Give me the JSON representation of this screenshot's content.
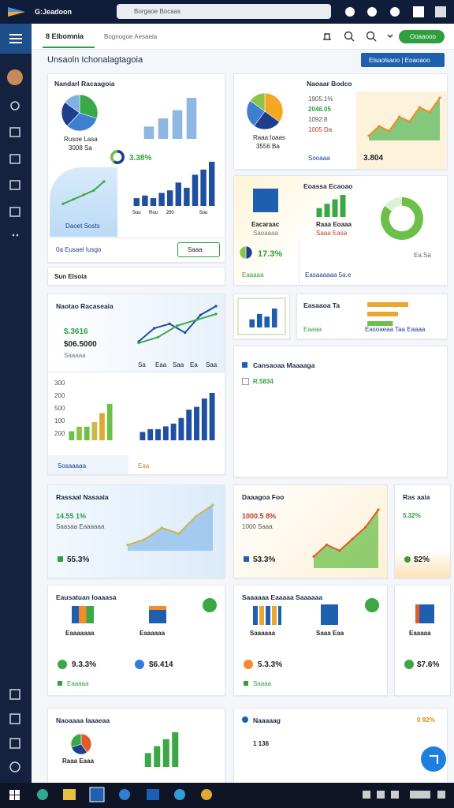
{
  "browser": {
    "title": "G:Jeadoon",
    "address": "Borgaoe Bocaas"
  },
  "header": {
    "tab": "8 Elbomnia",
    "section": "Bognogoe Aesaeia",
    "button": "Ooaaooo"
  },
  "page": {
    "title": "Unsaoln Ichonalagtagoia",
    "button": "Elsaolsaoo | Eoaoaoo"
  },
  "cards": {
    "overview": {
      "title": "Nandarl Racaagoia",
      "pie_label": "Rusoe Lasa",
      "pie_sub": "3008 Sa",
      "stat": "3.38%",
      "panel_label": "Daoet Sosts",
      "footer": "0a Eusael Iusgo",
      "button": "Saaa"
    },
    "select": {
      "label": "Sun Elsoia"
    },
    "market": {
      "title": "Naoaar Bodco",
      "lines": [
        "1905.1%",
        "2046.05",
        "1092:8",
        "1005 Da"
      ],
      "pie_label": "Raaa:Ioaas",
      "pie_sub": "3556 Ba",
      "footer": "Sooaaa",
      "stat": "3.804"
    },
    "regional": {
      "title": "Eoassa Ecaoao",
      "cube_label": "Eacaraac",
      "cube_sub": "Saoaaaa",
      "bar_label": "Raaa Eoaaa",
      "bar_sub": "Saaa Easa",
      "stat": "17.3%",
      "footer": "Eaaaaa",
      "link": "Easaaaaaa 5a.e",
      "tag": "Ea.Sa"
    },
    "analytics": {
      "title": "Naotao Racaseaia",
      "stat1": "$.3616",
      "stat2": "$06.5000",
      "sub": "Saaaaa",
      "axis": [
        "Sa",
        "Eaa",
        "Saa",
        "Ea",
        "Saa"
      ],
      "yaxis": [
        "300",
        "200",
        "500",
        "100",
        "200"
      ],
      "footer": "Sosaaaaa",
      "footer2": "Eaa"
    },
    "ranking": {
      "title": "Easaaoa Ta",
      "legend1": "Eaaaa",
      "legend2": "Easoaeaa Taa Eaaaa"
    },
    "campaign": {
      "title": "Cansaoaa Maaaaga",
      "stat": "R.5834"
    },
    "revenue": {
      "title": "Rassaal Nasaaia",
      "stat": "14.55 1%",
      "sub": "Saasaa Eaaaaaa",
      "footer": "55.3%"
    },
    "daily": {
      "title": "Daaagoa Foo",
      "stat": "1000.5 8%",
      "sub": "1000 Saaa",
      "footer": "53.3%"
    },
    "rates": {
      "title": "Ras aaia",
      "stat": "5.32%",
      "footer": "$2%"
    },
    "education": {
      "title": "Eausatuan Ioaaasa",
      "item1": "Eaaaaaaa",
      "item2": "Eaaaaaa",
      "stat1": "9.3.3%",
      "stat2": "$6.414",
      "footer": "Eaaaaa"
    },
    "sales": {
      "title": "Saaaaaa Eaaaaa Saaaaaa",
      "item1": "Saaaaaa",
      "item2": "Saaa Eaa",
      "stat": "5.3.3%",
      "footer": "Saaaa"
    },
    "stock": {
      "title": "Eaaaaa",
      "stat": "$7.6%"
    },
    "notes": {
      "title": "Naoaaaa Iaaaeaa",
      "pie_label": "Raaa Eaaa"
    },
    "ranking2": {
      "title": "Naaaaag",
      "stat": "0 92%",
      "sub": "1 136"
    }
  },
  "charts": [
    {
      "type": "pie",
      "values": [
        30,
        32,
        23,
        15
      ],
      "colors": [
        "#3aa845",
        "#3f7fd0",
        "#1d3f8c",
        "#7fb0e6"
      ]
    },
    {
      "type": "bar",
      "values": [
        3,
        5,
        7,
        10
      ],
      "color": "#8fb7e3"
    },
    {
      "type": "donut",
      "values": [
        60,
        40
      ],
      "colors": [
        "#1d3f8c",
        "#6cc04a"
      ]
    },
    {
      "type": "line",
      "values": [
        1,
        2,
        3,
        4,
        6
      ],
      "color": "#3aa845"
    },
    {
      "type": "bar",
      "values": [
        3,
        4,
        3,
        5,
        6,
        9,
        7,
        12,
        14,
        17
      ],
      "color": "#1e4fa0",
      "categories": [
        "Sou",
        null,
        "Rou",
        null,
        "200",
        null,
        null,
        null,
        "Sou",
        null
      ]
    },
    {
      "type": "pie",
      "values": [
        35,
        25,
        25,
        15
      ],
      "colors": [
        "#f5a623",
        "#1d3f8c",
        "#3f7fd0",
        "#8bc34a"
      ]
    },
    {
      "type": "area",
      "values": [
        1,
        3,
        2,
        5,
        4,
        7,
        6,
        9
      ],
      "color": "#5cb85c",
      "line": "#f28c28"
    },
    {
      "type": "bar",
      "values": [
        2,
        3,
        4,
        5
      ],
      "color": "#3aa845"
    },
    {
      "type": "donut",
      "values": [
        85,
        15
      ],
      "colors": [
        "#6cc04a",
        "#dff0d8"
      ]
    },
    {
      "type": "pie",
      "values": [
        50,
        50
      ],
      "colors": [
        "#1d3f8c",
        "#8bc34a"
      ]
    },
    {
      "type": "line",
      "values": [
        2,
        5,
        6,
        4,
        8,
        10
      ],
      "color": "#1e4fa0"
    },
    {
      "type": "line",
      "values": [
        1,
        2,
        4,
        5,
        6
      ],
      "color": "#3aa845"
    },
    {
      "type": "bar",
      "values": [
        2,
        3,
        3,
        4,
        6,
        8
      ],
      "colors": [
        "#6cc04a",
        "#8bc34a",
        "#6cc04a",
        "#c9b84a",
        "#e0a830",
        "#6cc04a"
      ]
    },
    {
      "type": "bar",
      "values": [
        3,
        4,
        4,
        5,
        6,
        8,
        11,
        12,
        15,
        17
      ],
      "color": "#1e4fa0"
    },
    {
      "type": "bar",
      "values": [
        3,
        5,
        4,
        7
      ],
      "color": "#1e5cb0"
    },
    {
      "type": "hbar",
      "values": [
        8,
        6,
        5
      ],
      "colors": [
        "#e8a830",
        "#e8a830",
        "#6cc04a"
      ]
    },
    {
      "type": "area",
      "values": [
        1,
        2,
        4,
        3,
        6,
        8
      ],
      "color": "#8fbfe9",
      "line": "#c9b84a"
    },
    {
      "type": "area",
      "values": [
        2,
        4,
        3,
        5,
        7,
        10
      ],
      "color": "#6cc04a",
      "line": "#e05a2a"
    },
    {
      "type": "pie",
      "values": [
        40,
        30,
        30
      ],
      "colors": [
        "#e05a2a",
        "#1d3f8c",
        "#3aa845"
      ]
    },
    {
      "type": "bar",
      "values": [
        4,
        6,
        8,
        10
      ],
      "color": "#3aa845"
    }
  ]
}
